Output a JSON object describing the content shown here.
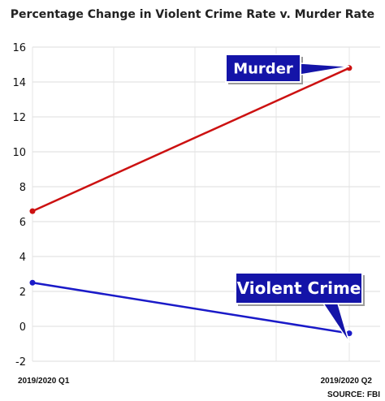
{
  "chart_data": {
    "type": "line",
    "title": "Percentage Change in Violent Crime Rate v. Murder Rate",
    "categories": [
      "2019/2020 Q1",
      "2019/2020 Q2"
    ],
    "ylim": [
      -2,
      16
    ],
    "yticks": [
      -2,
      0,
      2,
      4,
      6,
      8,
      10,
      12,
      14,
      16
    ],
    "grid": true,
    "series": [
      {
        "name": "Murder",
        "color": "#cc1111",
        "values": [
          6.6,
          14.8
        ]
      },
      {
        "name": "Violent Crime",
        "color": "#1a1ac8",
        "values": [
          2.5,
          -0.4
        ]
      }
    ],
    "source": "SOURCE: FBI",
    "callout_color": "#1414a8"
  }
}
